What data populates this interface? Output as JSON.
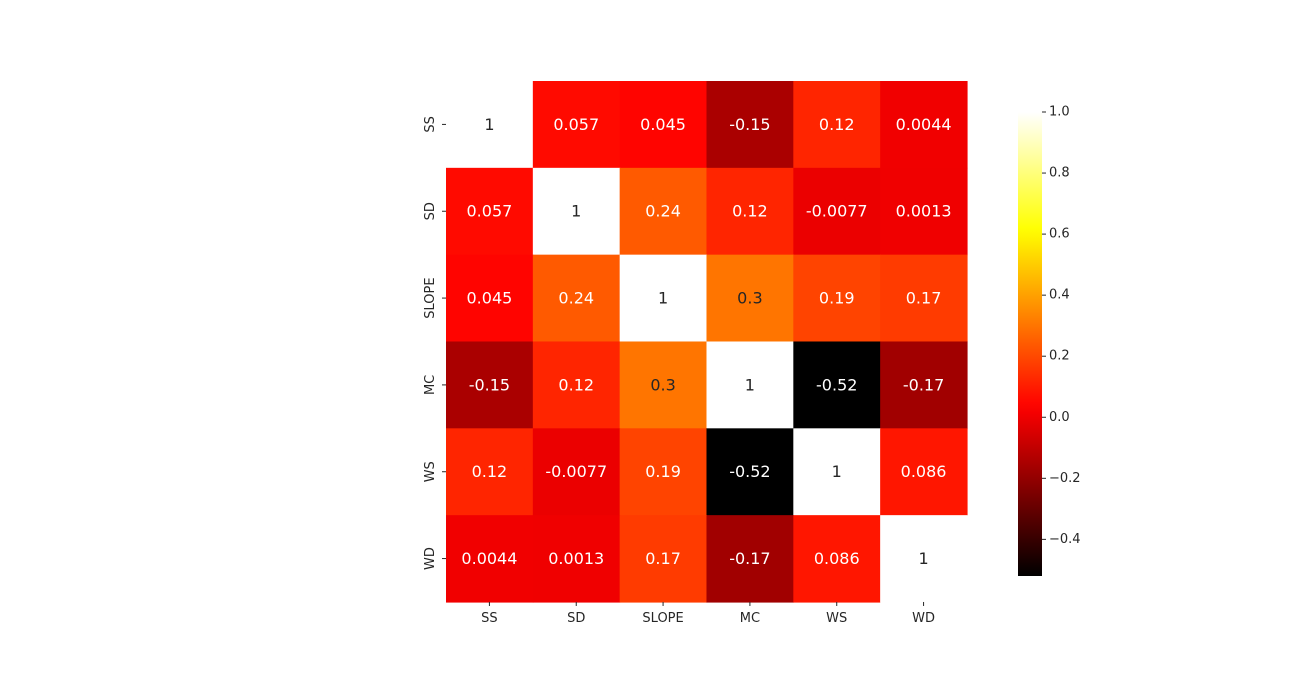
{
  "chart_data": {
    "type": "heatmap",
    "colormap": "hot",
    "variables": [
      "SS",
      "SD",
      "SLOPE",
      "MC",
      "WS",
      "WD"
    ],
    "matrix": [
      [
        1,
        0.057,
        0.045,
        -0.15,
        0.12,
        0.0044
      ],
      [
        0.057,
        1,
        0.24,
        0.12,
        -0.0077,
        0.0013
      ],
      [
        0.045,
        0.24,
        1,
        0.3,
        0.19,
        0.17
      ],
      [
        -0.15,
        0.12,
        0.3,
        1,
        -0.52,
        -0.17
      ],
      [
        0.12,
        -0.0077,
        0.19,
        -0.52,
        1,
        0.086
      ],
      [
        0.0044,
        0.0013,
        0.17,
        -0.17,
        0.086,
        1
      ]
    ],
    "annotations": [
      [
        "1",
        "0.057",
        "0.045",
        "-0.15",
        "0.12",
        "0.0044"
      ],
      [
        "0.057",
        "1",
        "0.24",
        "0.12",
        "-0.0077",
        "0.0013"
      ],
      [
        "0.045",
        "0.24",
        "1",
        "0.3",
        "0.19",
        "0.17"
      ],
      [
        "-0.15",
        "0.12",
        "0.3",
        "1",
        "-0.52",
        "-0.17"
      ],
      [
        "0.12",
        "-0.0077",
        "0.19",
        "-0.52",
        "1",
        "0.086"
      ],
      [
        "0.0044",
        "0.0013",
        "0.17",
        "-0.17",
        "0.086",
        "1"
      ]
    ],
    "vmin": -0.52,
    "vmax": 1,
    "colorbar_ticks": [
      "1.0",
      "0.8",
      "0.6",
      "0.4",
      "0.2",
      "0.0",
      "−0.2",
      "−0.4"
    ],
    "colorbar_tick_values": [
      1.0,
      0.8,
      0.6,
      0.4,
      0.2,
      0.0,
      -0.2,
      -0.4
    ],
    "title": "",
    "xlabel": "",
    "ylabel": ""
  }
}
